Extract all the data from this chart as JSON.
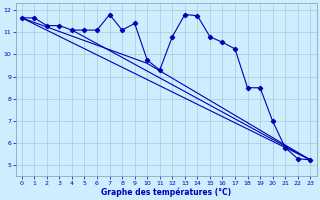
{
  "xlabel": "Graphe des températures (°C)",
  "background_color": "#cceeff",
  "grid_color": "#aabbcc",
  "line_color": "#0000bb",
  "xlim": [
    -0.5,
    23.5
  ],
  "ylim": [
    4.5,
    12.3
  ],
  "yticks": [
    5,
    6,
    7,
    8,
    9,
    10,
    11,
    12
  ],
  "xticks": [
    0,
    1,
    2,
    3,
    4,
    5,
    6,
    7,
    8,
    9,
    10,
    11,
    12,
    13,
    14,
    15,
    16,
    17,
    18,
    19,
    20,
    21,
    22,
    23
  ],
  "line_wiggly": {
    "x": [
      0,
      1,
      2,
      3,
      4,
      5,
      6,
      7,
      8,
      9,
      10,
      11,
      12,
      13,
      14,
      15,
      16,
      17,
      18,
      19,
      20,
      21,
      22,
      23
    ],
    "y": [
      11.65,
      11.65,
      11.3,
      11.3,
      11.1,
      11.1,
      11.1,
      11.8,
      11.1,
      11.4,
      9.75,
      9.3,
      10.8,
      11.8,
      11.75,
      10.8,
      10.55,
      10.25,
      8.5,
      8.5,
      7.0,
      5.8,
      5.3,
      5.25
    ]
  },
  "line_a": {
    "x": [
      0,
      23
    ],
    "y": [
      11.65,
      5.25
    ]
  },
  "line_b": {
    "x": [
      4,
      23
    ],
    "y": [
      11.1,
      5.25
    ]
  },
  "line_c": {
    "x": [
      0,
      10,
      23
    ],
    "y": [
      11.65,
      9.6,
      5.25
    ]
  }
}
